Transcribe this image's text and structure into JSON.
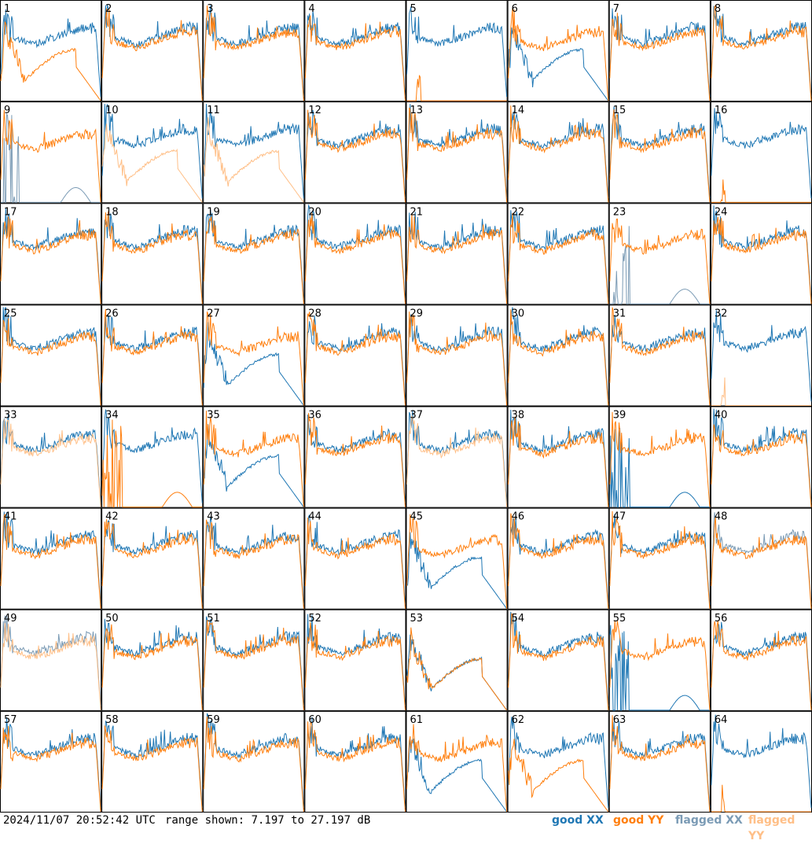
{
  "chart_data": {
    "type": "line",
    "layout": "grid of 64 small multiples (8 columns x 8 rows)",
    "panel_labels": [
      "1",
      "2",
      "3",
      "4",
      "5",
      "6",
      "7",
      "8",
      "9",
      "10",
      "11",
      "12",
      "13",
      "14",
      "15",
      "16",
      "17",
      "18",
      "19",
      "20",
      "21",
      "22",
      "23",
      "24",
      "25",
      "26",
      "27",
      "28",
      "29",
      "30",
      "31",
      "32",
      "33",
      "34",
      "35",
      "36",
      "37",
      "38",
      "39",
      "40",
      "41",
      "42",
      "43",
      "44",
      "45",
      "46",
      "47",
      "48",
      "49",
      "50",
      "51",
      "52",
      "53",
      "54",
      "55",
      "56",
      "57",
      "58",
      "59",
      "60",
      "61",
      "62",
      "63",
      "64"
    ],
    "ylim_db": [
      7.197,
      27.197
    ],
    "series": [
      {
        "name": "good XX",
        "color": "#1f77b4"
      },
      {
        "name": "good YY",
        "color": "#ff7f0e"
      },
      {
        "name": "flagged XX",
        "color": "#7b9bb5"
      },
      {
        "name": "flagged YY",
        "color": "#ffbf87"
      }
    ],
    "legend_position": "bottom-right",
    "grid": false,
    "flagged": {
      "xx": [
        9,
        23,
        48,
        49
      ],
      "yy": [
        10,
        11,
        32,
        33,
        37,
        49
      ]
    },
    "anomalous_panels": {
      "yy_near_flat_low": [
        5,
        16,
        64,
        32
      ],
      "xx_spiky_flat": [
        39,
        55,
        23,
        9
      ],
      "yy_spiky_flat": [
        34
      ],
      "xx_low_droop": [
        6,
        27,
        35,
        45,
        53,
        61
      ],
      "yy_low_droop": [
        1,
        62,
        53,
        10,
        11
      ]
    }
  },
  "footer": {
    "timestamp": "2024/11/07 20:52:42 UTC",
    "range": "range shown: 7.197 to 27.197 dB",
    "legend": {
      "good_xx": "good XX",
      "good_yy": "good YY",
      "flagged_xx": "flagged XX",
      "flagged_yy": "flagged YY"
    }
  },
  "colors": {
    "good_xx": "#1f77b4",
    "good_yy": "#ff7f0e",
    "flagged_xx": "#7b9bb5",
    "flagged_yy": "#ffbf87"
  }
}
